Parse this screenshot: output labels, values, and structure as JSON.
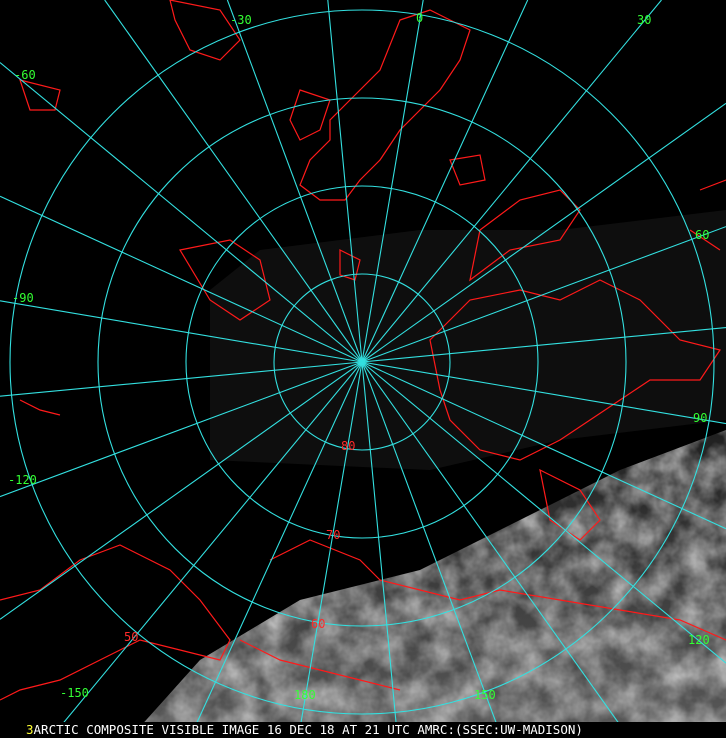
{
  "map": {
    "projection": "polar stereographic",
    "colors": {
      "background": "#000000",
      "graticule": "#33e0e0",
      "coastline": "#ff1a1a",
      "lon_label": "#33ff33",
      "lat_label": "#ff2a2a",
      "caption": "#ffffff",
      "frame_number": "#ffff33"
    },
    "longitude_labels": [
      "-30",
      "0",
      "30",
      "-60",
      "60",
      "-90",
      "90",
      "-120",
      "120",
      "-150",
      "180",
      "150"
    ],
    "longitude_values": [
      -30,
      0,
      30,
      -60,
      60,
      -90,
      90,
      -120,
      120,
      -150,
      180,
      150
    ],
    "latitude_labels": [
      "80",
      "70",
      "60",
      "50"
    ],
    "latitude_values": [
      80,
      70,
      60,
      50
    ],
    "meridian_interval_deg": 15
  },
  "caption": {
    "frame_number": "3",
    "text": "ARCTIC COMPOSITE VISIBLE IMAGE 16 DEC 18 AT 21 UTC AMRC:(SSEC:UW-MADISON)"
  }
}
